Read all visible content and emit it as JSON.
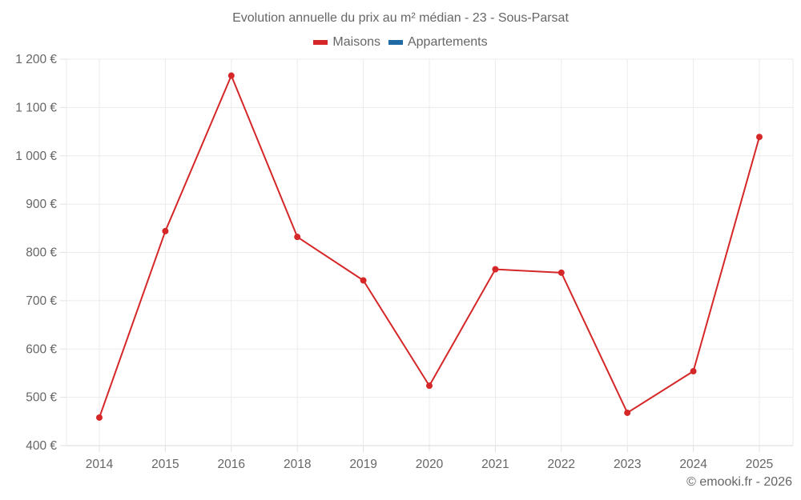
{
  "chart_data": {
    "type": "line",
    "title": "Evolution annuelle du prix au m² médian - 23 - Sous-Parsat",
    "xlabel": "",
    "ylabel": "",
    "categories": [
      "2014",
      "2015",
      "2016",
      "2018",
      "2019",
      "2020",
      "2021",
      "2022",
      "2023",
      "2024",
      "2025"
    ],
    "series": [
      {
        "name": "Maisons",
        "color": "#d62728",
        "values": [
          458,
          844,
          1166,
          832,
          742,
          524,
          765,
          758,
          468,
          554,
          1039
        ]
      },
      {
        "name": "Appartements",
        "color": "#1f6aa5",
        "values": []
      }
    ],
    "ylim": [
      400,
      1200
    ],
    "yticks": [
      400,
      500,
      600,
      700,
      800,
      900,
      1000,
      1100,
      1200
    ],
    "ytick_labels": [
      "400 €",
      "500 €",
      "600 €",
      "700 €",
      "800 €",
      "900 €",
      "1 000 €",
      "1 100 €",
      "1 200 €"
    ],
    "grid": true,
    "legend_position": "top"
  },
  "header": {
    "title": "Evolution annuelle du prix au m² médian - 23 - Sous-Parsat"
  },
  "legend": {
    "items": [
      {
        "label": "Maisons",
        "color": "#d62728"
      },
      {
        "label": "Appartements",
        "color": "#1f6aa5"
      }
    ]
  },
  "footer": {
    "credit": "© emooki.fr - 2026"
  }
}
